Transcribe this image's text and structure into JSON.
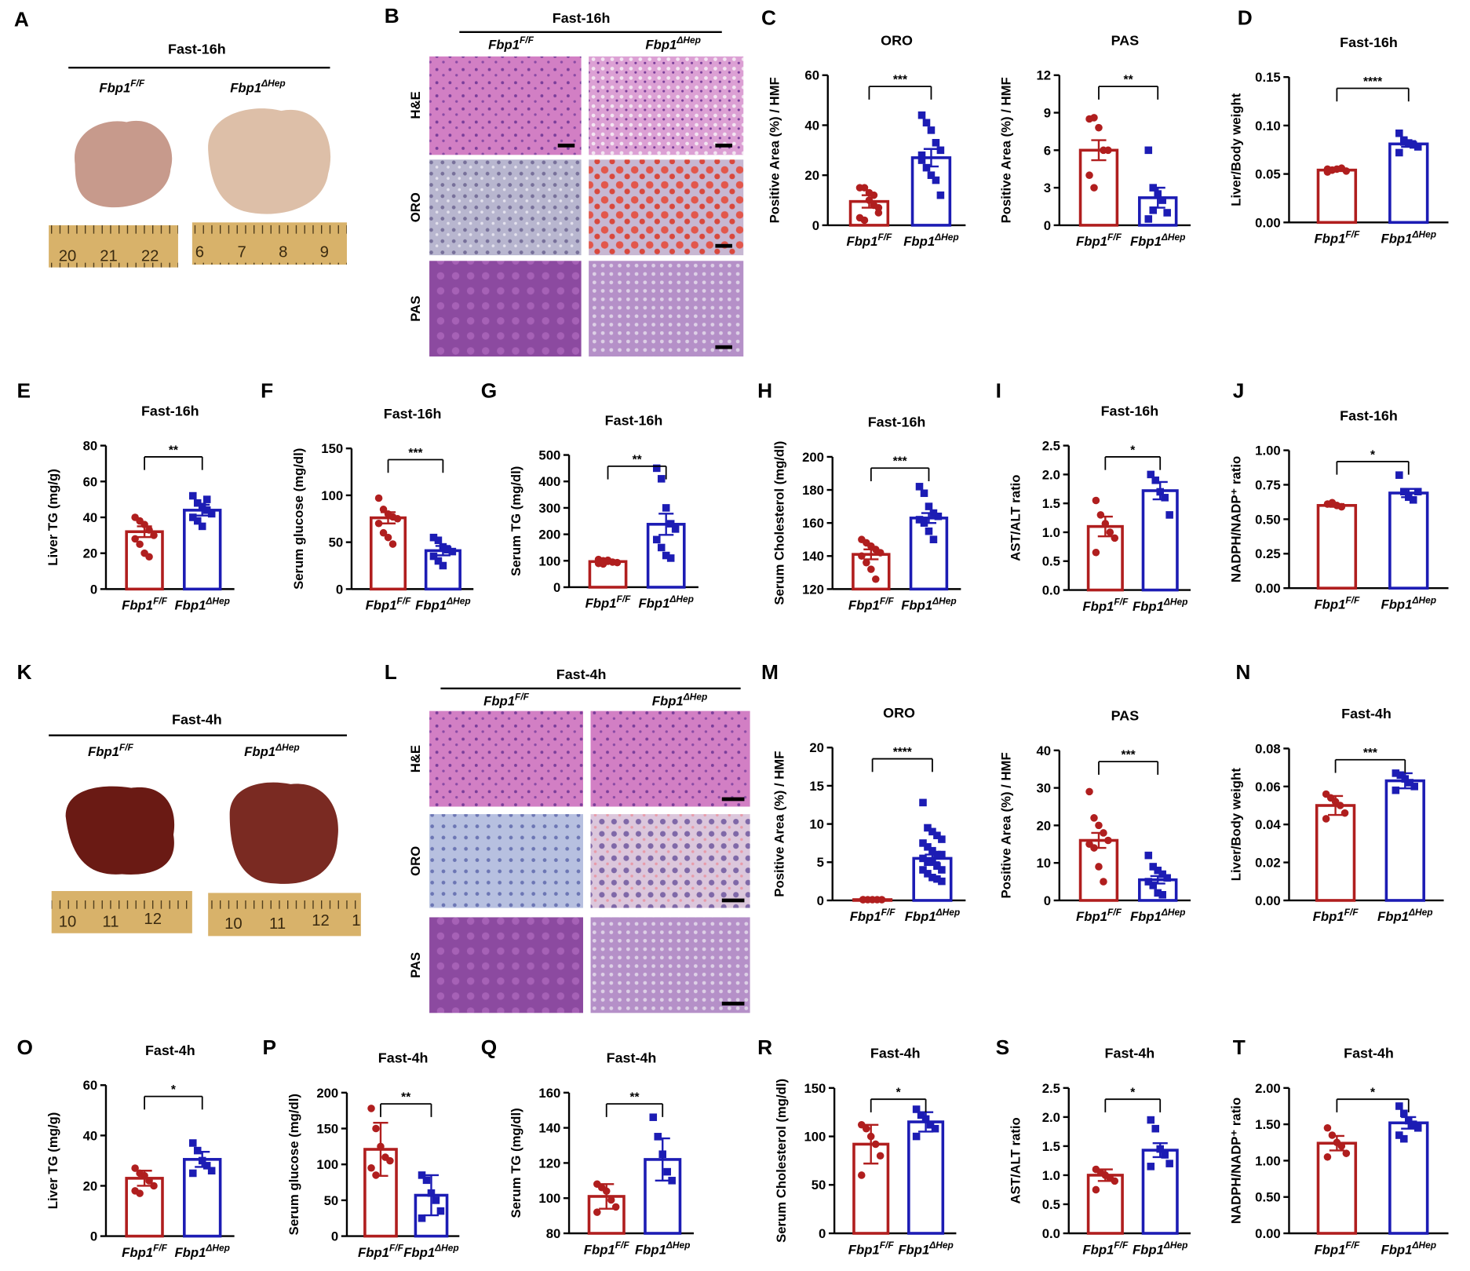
{
  "panel_letters": [
    "A",
    "B",
    "C",
    "D",
    "E",
    "F",
    "G",
    "H",
    "I",
    "J",
    "K",
    "L",
    "M",
    "N",
    "O",
    "P",
    "Q",
    "R",
    "S",
    "T"
  ],
  "photos": [
    {
      "heading": "Fast-16h",
      "genotypes": [
        {
          "base": "Fbp1",
          "sup": "F/F"
        },
        {
          "base": "Fbp1",
          "sup": "ΔHep"
        }
      ],
      "rulers": [
        [
          "20",
          "21",
          "22"
        ],
        [
          "6",
          "7",
          "8",
          "9"
        ]
      ]
    },
    {
      "heading": "Fast-16h",
      "genotypes": [
        {
          "base": "Fbp1",
          "sup": "F/F"
        },
        {
          "base": "Fbp1",
          "sup": "ΔHep"
        }
      ],
      "stains": [
        "H&E",
        "ORO",
        "PAS"
      ]
    },
    {
      "heading": "Fast-4h",
      "genotypes": [
        {
          "base": "Fbp1",
          "sup": "F/F"
        },
        {
          "base": "Fbp1",
          "sup": "ΔHep"
        }
      ],
      "rulers": [
        [
          "10",
          "11",
          "12"
        ],
        [
          "10",
          "11",
          "12",
          "1"
        ]
      ]
    },
    {
      "heading": "Fast-4h",
      "genotypes": [
        {
          "base": "Fbp1",
          "sup": "F/F"
        },
        {
          "base": "Fbp1",
          "sup": "ΔHep"
        }
      ],
      "stains": [
        "H&E",
        "ORO",
        "PAS"
      ]
    }
  ],
  "chart_data": [
    {
      "type": "bar",
      "title": "ORO",
      "ylabel": "Positive Area (%) / HMF",
      "categories": [
        "Fbp1",
        "Fbp1"
      ],
      "category_superscripts": [
        "F/F",
        "ΔHep"
      ],
      "colors": [
        "#b01e1e",
        "#1c1cb4"
      ],
      "values": [
        9.5,
        27
      ],
      "errors": [
        2.5,
        3.5
      ],
      "points": [
        [
          15,
          15,
          13,
          8,
          5,
          3,
          2,
          10,
          12,
          7
        ],
        [
          44,
          41,
          38,
          33,
          30,
          26,
          23,
          20,
          18,
          12,
          28
        ]
      ],
      "significance": "***",
      "ylim": [
        0,
        60
      ],
      "yticks": [
        0,
        20,
        40,
        60
      ]
    },
    {
      "type": "bar",
      "title": "PAS",
      "ylabel": "Positive Area (%) / HMF",
      "categories": [
        "Fbp1",
        "Fbp1"
      ],
      "category_superscripts": [
        "F/F",
        "ΔHep"
      ],
      "colors": [
        "#b01e1e",
        "#1c1cb4"
      ],
      "values": [
        6,
        2.2
      ],
      "errors": [
        0.8,
        0.8
      ],
      "points": [
        [
          8.5,
          8.6,
          7.8,
          6,
          6,
          4,
          3
        ],
        [
          6,
          3,
          2.5,
          2,
          1,
          0.5,
          1.2
        ]
      ],
      "significance": "**",
      "ylim": [
        0,
        12
      ],
      "yticks": [
        0,
        3,
        6,
        9,
        12
      ]
    },
    {
      "type": "bar",
      "title": "Fast-16h",
      "ylabel": "Liver/Body weight",
      "categories": [
        "Fbp1",
        "Fbp1"
      ],
      "category_superscripts": [
        "F/F",
        "ΔHep"
      ],
      "colors": [
        "#b01e1e",
        "#1c1cb4"
      ],
      "values": [
        0.054,
        0.081
      ],
      "errors": [
        0.001,
        0.003
      ],
      "points": [
        [
          0.052,
          0.054,
          0.055,
          0.056,
          0.053,
          0.055,
          0.054
        ],
        [
          0.092,
          0.085,
          0.082,
          0.08,
          0.078,
          0.072,
          0.083
        ]
      ],
      "significance": "****",
      "ylim": [
        0,
        0.15
      ],
      "yticks": [
        {
          "value": 0,
          "label": "0.00"
        },
        {
          "value": 0.05,
          "label": "0.05"
        },
        {
          "value": 0.1,
          "label": "0.10"
        },
        {
          "value": 0.15,
          "label": "0.15"
        }
      ]
    },
    {
      "type": "bar",
      "title": "Fast-16h",
      "ylabel": "Liver TG (mg/g)",
      "categories": [
        "Fbp1",
        "Fbp1"
      ],
      "category_superscripts": [
        "F/F",
        "ΔHep"
      ],
      "colors": [
        "#b01e1e",
        "#1c1cb4"
      ],
      "values": [
        32,
        44
      ],
      "errors": [
        3,
        3
      ],
      "points": [
        [
          40,
          38,
          36,
          33,
          30,
          28,
          25,
          20,
          18
        ],
        [
          52,
          48,
          46,
          44,
          42,
          40,
          38,
          35,
          50
        ]
      ],
      "significance": "**",
      "ylim": [
        0,
        80
      ],
      "yticks": [
        0,
        20,
        40,
        60,
        80
      ]
    },
    {
      "type": "bar",
      "title": "Fast-16h",
      "ylabel": "Serum glucose (mg/dl)",
      "categories": [
        "Fbp1",
        "Fbp1"
      ],
      "category_superscripts": [
        "F/F",
        "ΔHep"
      ],
      "colors": [
        "#b01e1e",
        "#1c1cb4"
      ],
      "values": [
        76,
        41
      ],
      "errors": [
        6,
        5
      ],
      "points": [
        [
          97,
          85,
          80,
          77,
          75,
          70,
          60,
          55,
          48
        ],
        [
          55,
          52,
          45,
          42,
          40,
          35,
          30,
          25
        ]
      ],
      "significance": "***",
      "ylim": [
        0,
        150
      ],
      "yticks": [
        0,
        50,
        100,
        150
      ]
    },
    {
      "type": "bar",
      "title": "Fast-16h",
      "ylabel": "Serum TG (mg/dl)",
      "categories": [
        "Fbp1",
        "Fbp1"
      ],
      "category_superscripts": [
        "F/F",
        "ΔHep"
      ],
      "colors": [
        "#b01e1e",
        "#1c1cb4"
      ],
      "values": [
        97,
        238
      ],
      "errors": [
        5,
        40
      ],
      "points": [
        [
          105,
          100,
          98,
          95,
          93,
          90,
          88,
          102
        ],
        [
          450,
          410,
          300,
          240,
          220,
          180,
          150,
          120,
          110
        ]
      ],
      "significance": "**",
      "ylim": [
        0,
        500
      ],
      "yticks": [
        0,
        100,
        200,
        300,
        400,
        500
      ]
    },
    {
      "type": "bar",
      "title": "Fast-16h",
      "ylabel": "Serum Cholesterol (mg/dl)",
      "categories": [
        "Fbp1",
        "Fbp1"
      ],
      "category_superscripts": [
        "F/F",
        "ΔHep"
      ],
      "colors": [
        "#b01e1e",
        "#1c1cb4"
      ],
      "values": [
        141,
        163
      ],
      "errors": [
        3,
        3
      ],
      "points": [
        [
          150,
          148,
          146,
          144,
          142,
          140,
          136,
          132,
          126
        ],
        [
          182,
          178,
          170,
          166,
          164,
          162,
          160,
          155,
          150
        ]
      ],
      "significance": "***",
      "ylim": [
        120,
        200
      ],
      "yticks": [
        120,
        140,
        160,
        180,
        200
      ]
    },
    {
      "type": "bar",
      "title": "Fast-16h",
      "ylabel": "AST/ALT ratio",
      "categories": [
        "Fbp1",
        "Fbp1"
      ],
      "category_superscripts": [
        "F/F",
        "ΔHep"
      ],
      "colors": [
        "#b01e1e",
        "#1c1cb4"
      ],
      "values": [
        1.1,
        1.72
      ],
      "errors": [
        0.17,
        0.15
      ],
      "points": [
        [
          1.55,
          1.3,
          1.15,
          1.0,
          0.9,
          0.65
        ],
        [
          2.0,
          1.9,
          1.7,
          1.6,
          1.3
        ]
      ],
      "significance": "*",
      "ylim": [
        0,
        2.5
      ],
      "yticks": [
        {
          "value": 0,
          "label": "0.0"
        },
        0.5,
        {
          "value": 1,
          "label": "1.0"
        },
        1.5,
        {
          "value": 2,
          "label": "2.0"
        },
        2.5
      ]
    },
    {
      "type": "bar",
      "title": "Fast-16h",
      "ylabel": "NADPH/NADP⁺ ratio",
      "categories": [
        "Fbp1",
        "Fbp1"
      ],
      "category_superscripts": [
        "F/F",
        "ΔHep"
      ],
      "colors": [
        "#b01e1e",
        "#1c1cb4"
      ],
      "values": [
        0.6,
        0.69
      ],
      "errors": [
        0.01,
        0.03
      ],
      "points": [
        [
          0.61,
          0.62,
          0.6,
          0.59
        ],
        [
          0.82,
          0.7,
          0.66,
          0.64,
          0.7
        ]
      ],
      "significance": "*",
      "ylim": [
        0,
        1
      ],
      "yticks": [
        {
          "value": 0,
          "label": "0.00"
        },
        {
          "value": 0.25,
          "label": "0.25"
        },
        {
          "value": 0.5,
          "label": "0.50"
        },
        {
          "value": 0.75,
          "label": "0.75"
        },
        {
          "value": 1,
          "label": "1.00"
        }
      ]
    },
    {
      "type": "bar",
      "title": "ORO",
      "ylabel": "Positive Area (%) / HMF",
      "categories": [
        "Fbp1",
        "Fbp1"
      ],
      "category_superscripts": [
        "F/F",
        "ΔHep"
      ],
      "colors": [
        "#b01e1e",
        "#1c1cb4"
      ],
      "values": [
        0.1,
        5.5
      ],
      "errors": [
        0.05,
        0.5
      ],
      "points": [
        [
          0.1,
          0.1,
          0.1,
          0.1,
          0.1,
          0.1
        ],
        [
          12.8,
          9.5,
          9,
          8.5,
          8,
          7.5,
          7,
          6.5,
          6,
          6,
          5.5,
          5,
          5,
          4.5,
          4,
          4,
          3.5,
          3,
          2.8,
          2.5
        ]
      ],
      "significance": "****",
      "ylim": [
        0,
        20
      ],
      "yticks": [
        0,
        5,
        10,
        15,
        20
      ]
    },
    {
      "type": "bar",
      "title": "PAS",
      "ylabel": "Positive Area (%) / HMF",
      "categories": [
        "Fbp1",
        "Fbp1"
      ],
      "category_superscripts": [
        "F/F",
        "ΔHep"
      ],
      "colors": [
        "#b01e1e",
        "#1c1cb4"
      ],
      "values": [
        16,
        5.5
      ],
      "errors": [
        2,
        1
      ],
      "points": [
        [
          29,
          22,
          20,
          18,
          16,
          15,
          14,
          9,
          5
        ],
        [
          12,
          9,
          8,
          7,
          6,
          5,
          4,
          2,
          1.5
        ]
      ],
      "significance": "***",
      "ylim": [
        0,
        40
      ],
      "yticks": [
        0,
        10,
        20,
        30,
        40
      ]
    },
    {
      "type": "bar",
      "title": "Fast-4h",
      "ylabel": "Liver/Body weight",
      "categories": [
        "Fbp1",
        "Fbp1"
      ],
      "category_superscripts": [
        "F/F",
        "ΔHep"
      ],
      "colors": [
        "#b01e1e",
        "#1c1cb4"
      ],
      "values": [
        0.05,
        0.063
      ],
      "errors": [
        0.005,
        0.004
      ],
      "points": [
        [
          0.056,
          0.054,
          0.052,
          0.05,
          0.046,
          0.043
        ],
        [
          0.067,
          0.066,
          0.064,
          0.062,
          0.06,
          0.058
        ]
      ],
      "significance": "***",
      "ylim": [
        0,
        0.08
      ],
      "yticks": [
        {
          "value": 0,
          "label": "0.00"
        },
        {
          "value": 0.02,
          "label": "0.02"
        },
        {
          "value": 0.04,
          "label": "0.04"
        },
        {
          "value": 0.06,
          "label": "0.06"
        },
        {
          "value": 0.08,
          "label": "0.08"
        }
      ]
    },
    {
      "type": "bar",
      "title": "Fast-4h",
      "ylabel": "Liver TG (mg/g)",
      "categories": [
        "Fbp1",
        "Fbp1"
      ],
      "category_superscripts": [
        "F/F",
        "ΔHep"
      ],
      "colors": [
        "#b01e1e",
        "#1c1cb4"
      ],
      "values": [
        23,
        30.5
      ],
      "errors": [
        3,
        3
      ],
      "points": [
        [
          27,
          25,
          24,
          22,
          20,
          18,
          17
        ],
        [
          37,
          34,
          30,
          28,
          26,
          25
        ]
      ],
      "significance": "*",
      "ylim": [
        0,
        60
      ],
      "yticks": [
        0,
        20,
        40,
        60
      ]
    },
    {
      "type": "bar",
      "title": "Fast-4h",
      "ylabel": "Serum glucose  (mg/dl)",
      "categories": [
        "Fbp1",
        "Fbp1"
      ],
      "category_superscripts": [
        "F/F",
        "ΔHep"
      ],
      "colors": [
        "#b01e1e",
        "#1c1cb4"
      ],
      "values": [
        121,
        57
      ],
      "errors": [
        37,
        28
      ],
      "points": [
        [
          178,
          150,
          125,
          110,
          105,
          95,
          85
        ],
        [
          85,
          78,
          60,
          50,
          35,
          25
        ]
      ],
      "significance": "**",
      "ylim": [
        0,
        200
      ],
      "yticks": [
        0,
        50,
        100,
        150,
        200
      ]
    },
    {
      "type": "bar",
      "title": "Fast-4h",
      "ylabel": "Serum TG (mg/dl)",
      "categories": [
        "Fbp1",
        "Fbp1"
      ],
      "category_superscripts": [
        "F/F",
        "ΔHep"
      ],
      "colors": [
        "#b01e1e",
        "#1c1cb4"
      ],
      "values": [
        101,
        122
      ],
      "errors": [
        7,
        12
      ],
      "points": [
        [
          108,
          106,
          104,
          99,
          95,
          92
        ],
        [
          146,
          135,
          125,
          115,
          110
        ]
      ],
      "significance": "**",
      "ylim": [
        80,
        160
      ],
      "yticks": [
        80,
        100,
        120,
        140,
        160
      ]
    },
    {
      "type": "bar",
      "title": "Fast-4h",
      "ylabel": "Serum Cholesterol (mg/dl)",
      "categories": [
        "Fbp1",
        "Fbp1"
      ],
      "category_superscripts": [
        "F/F",
        "ΔHep"
      ],
      "colors": [
        "#b01e1e",
        "#1c1cb4"
      ],
      "values": [
        92,
        115
      ],
      "errors": [
        20,
        10
      ],
      "points": [
        [
          112,
          108,
          100,
          92,
          80,
          60
        ],
        [
          128,
          122,
          118,
          112,
          108,
          100
        ]
      ],
      "significance": "*",
      "ylim": [
        0,
        150
      ],
      "yticks": [
        0,
        50,
        100,
        150
      ]
    },
    {
      "type": "bar",
      "title": "Fast-4h",
      "ylabel": "AST/ALT ratio",
      "categories": [
        "Fbp1",
        "Fbp1"
      ],
      "category_superscripts": [
        "F/F",
        "ΔHep"
      ],
      "colors": [
        "#b01e1e",
        "#1c1cb4"
      ],
      "values": [
        1.0,
        1.43
      ],
      "errors": [
        0.1,
        0.12
      ],
      "points": [
        [
          1.1,
          1.05,
          1.0,
          0.95,
          0.9,
          0.75
        ],
        [
          1.95,
          1.8,
          1.45,
          1.35,
          1.2,
          1.15
        ]
      ],
      "significance": "*",
      "ylim": [
        0,
        2.5
      ],
      "yticks": [
        {
          "value": 0,
          "label": "0.0"
        },
        0.5,
        {
          "value": 1,
          "label": "1.0"
        },
        1.5,
        {
          "value": 2,
          "label": "2.0"
        },
        2.5
      ]
    },
    {
      "type": "bar",
      "title": "Fast-4h",
      "ylabel": "NADPH/NADP⁺ ratio",
      "categories": [
        "Fbp1",
        "Fbp1"
      ],
      "category_superscripts": [
        "F/F",
        "ΔHep"
      ],
      "colors": [
        "#b01e1e",
        "#1c1cb4"
      ],
      "values": [
        1.24,
        1.52
      ],
      "errors": [
        0.1,
        0.08
      ],
      "points": [
        [
          1.45,
          1.35,
          1.25,
          1.2,
          1.1,
          1.05
        ],
        [
          1.75,
          1.65,
          1.55,
          1.5,
          1.45,
          1.35,
          1.3
        ]
      ],
      "significance": "*",
      "ylim": [
        0,
        2
      ],
      "yticks": [
        {
          "value": 0,
          "label": "0.00"
        },
        {
          "value": 0.5,
          "label": "0.50"
        },
        {
          "value": 1,
          "label": "1.00"
        },
        {
          "value": 1.5,
          "label": "1.50"
        },
        {
          "value": 2,
          "label": "2.00"
        }
      ]
    }
  ]
}
